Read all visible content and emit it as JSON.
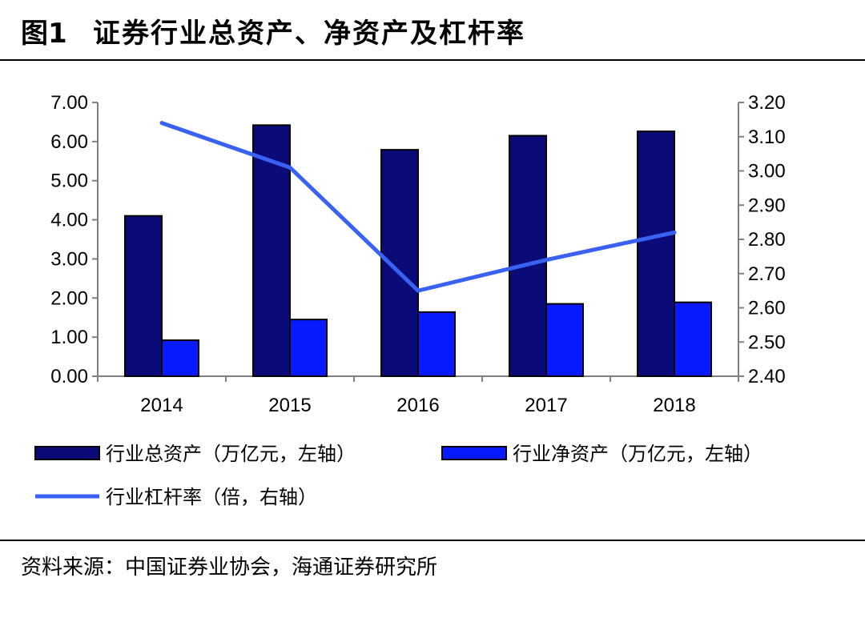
{
  "figure": {
    "label": "图1",
    "title": "证券行业总资产、净资产及杠杆率"
  },
  "source": "资料来源：中国证券业协会，海通证券研究所",
  "colors": {
    "total_assets": "#0a0a78",
    "net_assets": "#0a1aff",
    "leverage": "#3a62f2"
  },
  "chart_data": {
    "type": "bar",
    "categories": [
      "2014",
      "2015",
      "2016",
      "2017",
      "2018"
    ],
    "series": [
      {
        "name": "行业总资产（万亿元，左轴）",
        "type": "bar",
        "axis": "left",
        "values": [
          4.1,
          6.42,
          5.79,
          6.15,
          6.26
        ]
      },
      {
        "name": "行业净资产（万亿元，左轴）",
        "type": "bar",
        "axis": "left",
        "values": [
          0.92,
          1.45,
          1.64,
          1.85,
          1.89
        ]
      },
      {
        "name": "行业杠杆率（倍，右轴）",
        "type": "line",
        "axis": "right",
        "values": [
          3.14,
          3.01,
          2.65,
          2.74,
          2.82
        ]
      }
    ],
    "yleft": {
      "lim": [
        0,
        7
      ],
      "ticks": [
        "0.00",
        "1.00",
        "2.00",
        "3.00",
        "4.00",
        "5.00",
        "6.00",
        "7.00"
      ]
    },
    "yright": {
      "lim": [
        2.4,
        3.2
      ],
      "ticks": [
        "2.40",
        "2.50",
        "2.60",
        "2.70",
        "2.80",
        "2.90",
        "3.00",
        "3.10",
        "3.20"
      ]
    },
    "legend": "bottom",
    "grid": false
  }
}
